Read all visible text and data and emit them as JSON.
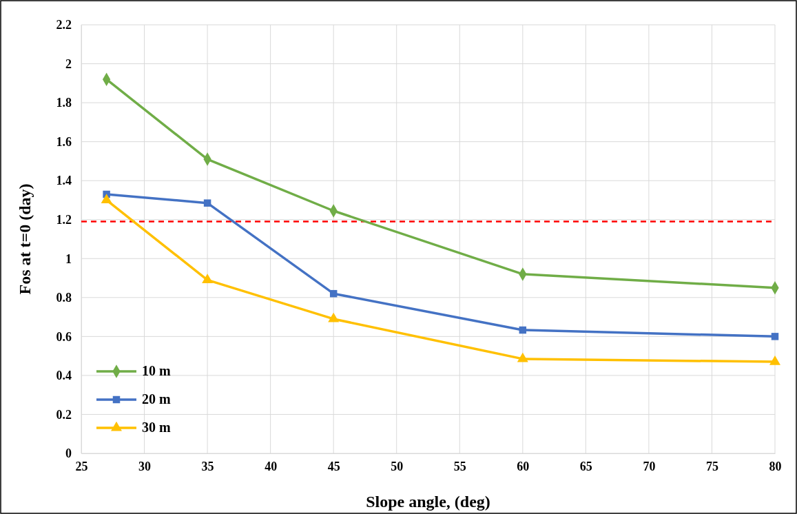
{
  "chart_data": {
    "type": "line",
    "xlabel": "Slope angle, (deg)",
    "ylabel": "Fos at t=0 (day)",
    "x": [
      27,
      35,
      45,
      60,
      80
    ],
    "series": [
      {
        "name": "10 m",
        "color": "#70ad47",
        "marker": "diamond",
        "values": [
          1.92,
          1.51,
          1.245,
          0.92,
          0.85
        ]
      },
      {
        "name": "20 m",
        "color": "#4472c4",
        "marker": "square",
        "values": [
          1.33,
          1.285,
          0.82,
          0.633,
          0.6
        ]
      },
      {
        "name": "30 m",
        "color": "#ffc000",
        "marker": "triangle",
        "values": [
          1.3,
          0.89,
          0.69,
          0.485,
          0.47
        ]
      }
    ],
    "xlim": [
      25,
      80
    ],
    "xticks": [
      25,
      30,
      35,
      40,
      45,
      50,
      55,
      60,
      65,
      70,
      75,
      80
    ],
    "ylim": [
      0,
      2.2
    ],
    "yticks": [
      0,
      0.2,
      0.4,
      0.6,
      0.8,
      1,
      1.2,
      1.4,
      1.6,
      1.8,
      2,
      2.2
    ],
    "ref_lines": [
      {
        "axis": "y",
        "value": 1.19,
        "color": "#ff0000",
        "line_style": "dashed"
      }
    ],
    "grid": true,
    "legend": "bottom left",
    "line_style": "solid"
  }
}
